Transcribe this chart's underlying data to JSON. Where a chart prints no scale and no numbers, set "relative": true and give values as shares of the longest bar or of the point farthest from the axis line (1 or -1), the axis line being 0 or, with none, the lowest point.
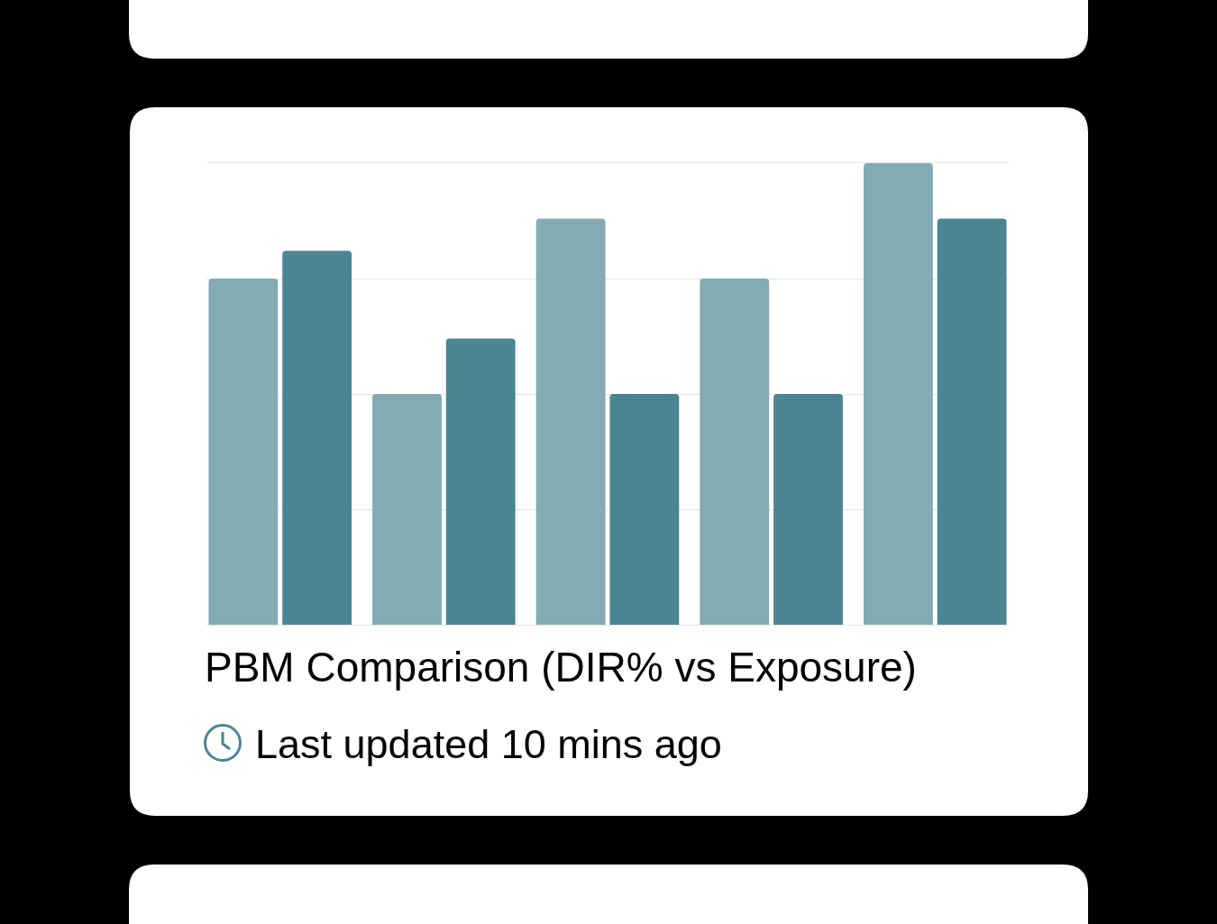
{
  "chart_data": {
    "type": "bar",
    "title": "PBM Comparison (DIR% vs Exposure)",
    "annotations": [
      "Last updated 10 mins ago"
    ],
    "categories": [
      null,
      null,
      null,
      null,
      null
    ],
    "series": [
      {
        "color": "#82abb4",
        "values": [
          0.75,
          0.5,
          0.88,
          0.75,
          1
        ]
      },
      {
        "color": "#4b8594",
        "values": [
          0.81,
          0.62,
          0.5,
          0.5,
          0.88
        ]
      }
    ],
    "relative": true,
    "grid": "y"
  }
}
